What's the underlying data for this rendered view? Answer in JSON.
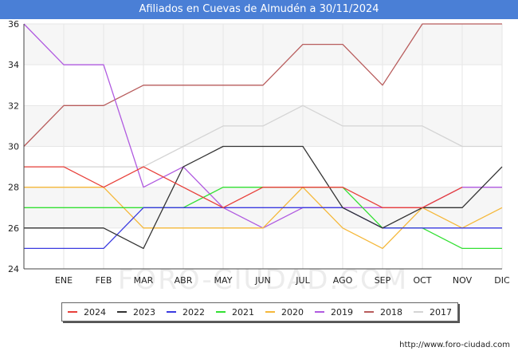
{
  "chart_data": {
    "type": "line",
    "title": "Afiliados en Cuevas de Almudén a 30/11/2024",
    "categories": [
      "",
      "ENE",
      "FEB",
      "MAR",
      "ABR",
      "MAY",
      "JUN",
      "JUL",
      "AGO",
      "SEP",
      "OCT",
      "NOV",
      "DIC"
    ],
    "ylim": [
      24,
      36
    ],
    "yticks": [
      24,
      26,
      28,
      30,
      32,
      34,
      36
    ],
    "grid": true,
    "legend_position": "bottom",
    "series": [
      {
        "name": "2024",
        "color": "#e8403a",
        "values": [
          29,
          29,
          28,
          29,
          28,
          27,
          28,
          28,
          28,
          27,
          27,
          28,
          null
        ]
      },
      {
        "name": "2023",
        "color": "#333333",
        "values": [
          26,
          26,
          26,
          25,
          29,
          30,
          30,
          30,
          27,
          26,
          27,
          27,
          29
        ]
      },
      {
        "name": "2022",
        "color": "#3a3ae0",
        "values": [
          25,
          25,
          25,
          27,
          27,
          27,
          27,
          27,
          27,
          26,
          26,
          26,
          26
        ]
      },
      {
        "name": "2021",
        "color": "#33e033",
        "values": [
          27,
          27,
          27,
          27,
          27,
          28,
          28,
          28,
          28,
          26,
          26,
          25,
          25
        ]
      },
      {
        "name": "2020",
        "color": "#f5b83a",
        "values": [
          28,
          28,
          28,
          26,
          26,
          26,
          26,
          28,
          26,
          25,
          27,
          26,
          27
        ]
      },
      {
        "name": "2019",
        "color": "#b05ae0",
        "values": [
          36,
          34,
          34,
          28,
          29,
          27,
          26,
          27,
          27,
          27,
          27,
          28,
          28
        ]
      },
      {
        "name": "2018",
        "color": "#b85c5c",
        "values": [
          30,
          32,
          32,
          33,
          33,
          33,
          33,
          35,
          35,
          33,
          36,
          36,
          36
        ]
      },
      {
        "name": "2017",
        "color": "#d4d4d4",
        "values": [
          29,
          29,
          29,
          29,
          30,
          31,
          31,
          32,
          31,
          31,
          31,
          30,
          30
        ]
      }
    ],
    "legend_order": [
      "2024",
      "2023",
      "2022",
      "2021",
      "2020",
      "2019",
      "2018",
      "2017"
    ]
  },
  "credit": "http://www.foro-ciudad.com",
  "watermark": "FORO-CIUDAD.COM"
}
